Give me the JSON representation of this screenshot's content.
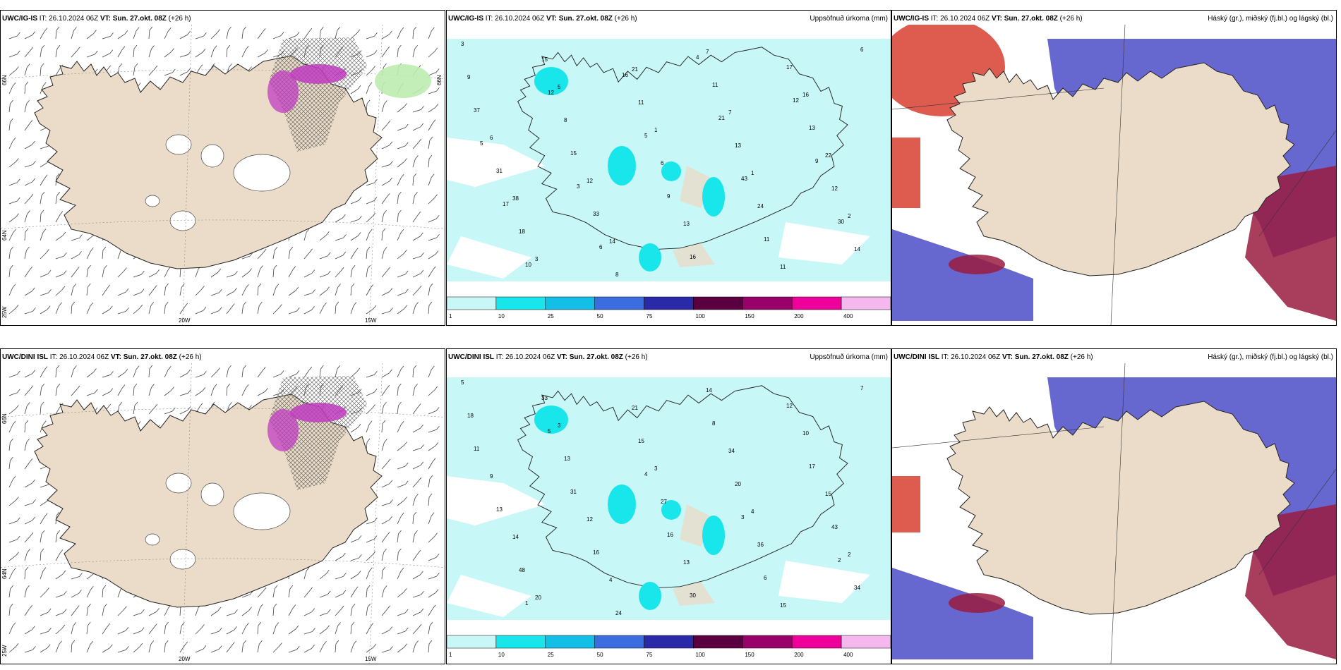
{
  "panels": [
    {
      "id": "tl",
      "model": "UWC/IG-IS",
      "it_prefix": "IT:",
      "it": "26.10.2024 06Z",
      "vt_prefix": "VT:",
      "vt": "Sun. 27.okt. 08Z",
      "lead": "(+26 h)",
      "title": "",
      "lon_labels": [
        "20W",
        "15W"
      ],
      "lat_labels": [
        "66N",
        "64N",
        "25W",
        "66N"
      ]
    },
    {
      "id": "tm",
      "model": "UWC/IG-IS",
      "it_prefix": "IT:",
      "it": "26.10.2024 06Z",
      "vt_prefix": "VT:",
      "vt": "Sun. 27.okt. 08Z",
      "lead": "(+26 h)",
      "title": "Uppsöfnuð úrkoma (mm)"
    },
    {
      "id": "tr",
      "model": "UWC/IG-IS",
      "it_prefix": "IT:",
      "it": "26.10.2024 06Z",
      "vt_prefix": "VT:",
      "vt": "Sun. 27.okt. 08Z",
      "lead": "(+26 h)",
      "title": "Háský (gr.), miðský (fj.bl.) og lágský (bl.)"
    },
    {
      "id": "bl",
      "model": "UWC/DINI ISL",
      "it_prefix": "IT:",
      "it": "26.10.2024 06Z",
      "vt_prefix": "VT:",
      "vt": "Sun. 27.okt. 08Z",
      "lead": "(+26 h)",
      "title": "",
      "lon_labels": [
        "20W",
        "15W"
      ],
      "lat_labels": [
        "66N",
        "64N",
        "25W"
      ]
    },
    {
      "id": "bm",
      "model": "UWC/DINI ISL",
      "it_prefix": "IT:",
      "it": "26.10.2024 06Z",
      "vt_prefix": "VT:",
      "vt": "Sun. 27.okt. 08Z",
      "lead": "(+26 h)",
      "title": "Uppsöfnuð úrkoma (mm)"
    },
    {
      "id": "br",
      "model": "UWC/DINI ISL",
      "it_prefix": "IT:",
      "it": "26.10.2024 06Z",
      "vt_prefix": "VT:",
      "vt": "Sun. 27.okt. 08Z",
      "lead": "(+26 h)",
      "title": "Háský (gr.), miðský (fj.bl.) og lágský (bl.)"
    }
  ],
  "colorbar": {
    "labels": [
      "1",
      "10",
      "25",
      "50",
      "75",
      "100",
      "150",
      "200",
      "400"
    ],
    "colors": [
      "#c8f7f7",
      "#19e6ea",
      "#13bfe6",
      "#3b6de0",
      "#2a2aa8",
      "#5a0040",
      "#9a006a",
      "#f0009a",
      "#f5b8ee"
    ]
  },
  "precip_top": [
    "3",
    "5",
    "1",
    "1",
    "2",
    "3",
    "21",
    "7",
    "22",
    "38",
    "14",
    "7",
    "16",
    "6",
    "12",
    "13",
    "11",
    "9",
    "8",
    "6",
    "24",
    "14",
    "15",
    "11",
    "13",
    "12",
    "18",
    "8",
    "11",
    "13",
    "31",
    "33",
    "16",
    "17",
    "37",
    "15",
    "9",
    "11",
    "6",
    "12",
    "5",
    "43",
    "30",
    "10",
    "16",
    "21",
    "9",
    "17",
    "6",
    "4",
    "12",
    "5",
    "3"
  ],
  "precip_bot": [
    "5",
    "3",
    "3",
    "4",
    "2",
    "20",
    "21",
    "34",
    "15",
    "14",
    "4",
    "14",
    "10",
    "9",
    "12",
    "13",
    "15",
    "18",
    "13",
    "27",
    "36",
    "34",
    "33",
    "15",
    "20",
    "43",
    "48",
    "24",
    "8",
    "17",
    "13",
    "16",
    "30",
    "12",
    "11",
    "31",
    "16",
    "6",
    "7",
    "5",
    "4",
    "3",
    "2",
    "1"
  ],
  "colors": {
    "land": "#eadcc8",
    "precip_light": "#c8f7f7",
    "accent_pink": "#c03cc0",
    "high_cloud": "#9a1c40",
    "mid_cloud": "#d84030",
    "low_cloud": "#4c4cc8"
  }
}
